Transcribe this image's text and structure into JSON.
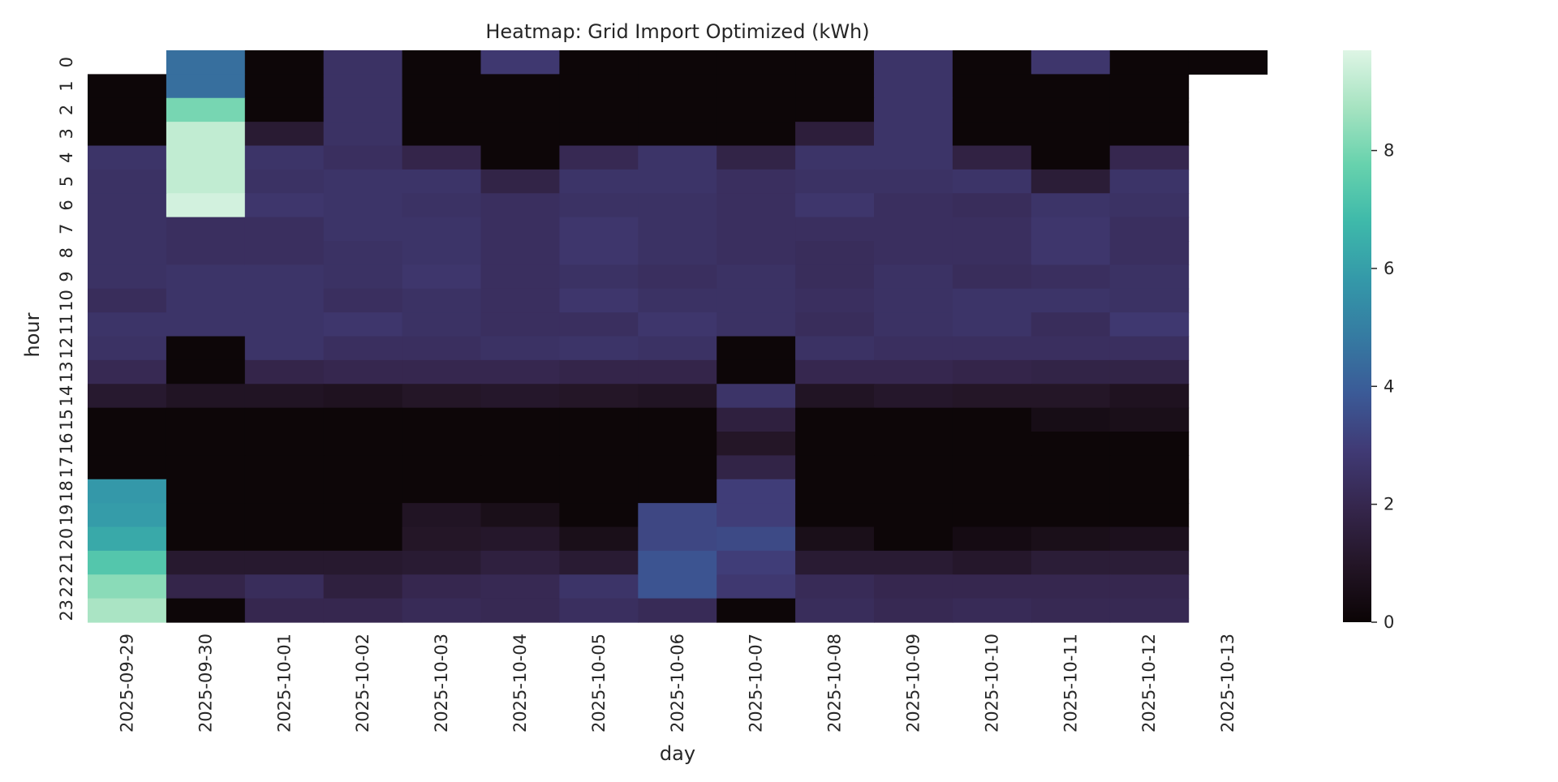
{
  "chart_data": {
    "type": "heatmap",
    "title": "Heatmap: Grid Import Optimized (kWh)",
    "xlabel": "day",
    "ylabel": "hour",
    "x": [
      "2025-09-29",
      "2025-09-30",
      "2025-10-01",
      "2025-10-02",
      "2025-10-03",
      "2025-10-04",
      "2025-10-05",
      "2025-10-06",
      "2025-10-07",
      "2025-10-08",
      "2025-10-09",
      "2025-10-10",
      "2025-10-11",
      "2025-10-12",
      "2025-10-13"
    ],
    "y": [
      "0",
      "1",
      "2",
      "3",
      "4",
      "5",
      "6",
      "7",
      "8",
      "9",
      "10",
      "11",
      "12",
      "13",
      "14",
      "15",
      "16",
      "17",
      "18",
      "19",
      "20",
      "21",
      "22",
      "23"
    ],
    "values": [
      [
        null,
        4.5,
        0.1,
        2.5,
        0.1,
        2.8,
        0.1,
        0.1,
        0.1,
        0.1,
        2.6,
        0.1,
        2.7,
        0.1,
        0.1
      ],
      [
        0.1,
        4.5,
        0.1,
        2.5,
        0.1,
        0.1,
        0.1,
        0.1,
        0.1,
        0.1,
        2.6,
        0.1,
        0.1,
        0.1,
        null
      ],
      [
        0.1,
        8.0,
        0.1,
        2.5,
        0.1,
        0.1,
        0.1,
        0.1,
        0.1,
        0.1,
        2.6,
        0.1,
        0.1,
        0.1,
        null
      ],
      [
        0.1,
        9.2,
        1.3,
        2.5,
        0.1,
        0.1,
        0.1,
        0.1,
        0.1,
        1.5,
        2.6,
        0.1,
        0.1,
        0.1,
        null
      ],
      [
        2.6,
        9.2,
        2.6,
        2.4,
        1.9,
        0.1,
        2.1,
        2.6,
        1.8,
        2.6,
        2.6,
        1.7,
        0.1,
        2.0,
        null
      ],
      [
        2.5,
        9.2,
        2.5,
        2.6,
        2.6,
        1.8,
        2.6,
        2.6,
        2.4,
        2.5,
        2.5,
        2.6,
        1.4,
        2.6,
        null
      ],
      [
        2.5,
        9.5,
        2.7,
        2.6,
        2.5,
        2.4,
        2.5,
        2.5,
        2.4,
        2.7,
        2.4,
        2.3,
        2.6,
        2.5,
        null
      ],
      [
        2.5,
        2.4,
        2.4,
        2.6,
        2.6,
        2.4,
        2.7,
        2.5,
        2.4,
        2.4,
        2.4,
        2.4,
        2.7,
        2.4,
        null
      ],
      [
        2.5,
        2.4,
        2.4,
        2.5,
        2.6,
        2.4,
        2.7,
        2.5,
        2.4,
        2.3,
        2.4,
        2.4,
        2.7,
        2.4,
        null
      ],
      [
        2.5,
        2.6,
        2.6,
        2.5,
        2.7,
        2.4,
        2.5,
        2.4,
        2.5,
        2.3,
        2.5,
        2.3,
        2.4,
        2.5,
        null
      ],
      [
        2.3,
        2.6,
        2.6,
        2.4,
        2.5,
        2.4,
        2.7,
        2.5,
        2.5,
        2.4,
        2.5,
        2.6,
        2.6,
        2.5,
        null
      ],
      [
        2.6,
        2.6,
        2.6,
        2.7,
        2.5,
        2.4,
        2.4,
        2.7,
        2.5,
        2.3,
        2.5,
        2.6,
        2.3,
        2.8,
        null
      ],
      [
        2.5,
        0.1,
        2.6,
        2.4,
        2.4,
        2.5,
        2.6,
        2.5,
        0.1,
        2.5,
        2.4,
        2.4,
        2.4,
        2.4,
        null
      ],
      [
        2.1,
        0.1,
        1.9,
        2.0,
        2.0,
        2.0,
        1.9,
        1.9,
        0.1,
        2.0,
        2.0,
        1.9,
        1.8,
        1.8,
        null
      ],
      [
        1.2,
        0.9,
        0.9,
        0.8,
        1.0,
        1.1,
        1.0,
        0.9,
        2.6,
        0.9,
        1.1,
        1.0,
        1.0,
        0.8,
        null
      ],
      [
        0.1,
        0.1,
        0.1,
        0.1,
        0.1,
        0.1,
        0.1,
        0.1,
        1.6,
        0.1,
        0.1,
        0.1,
        0.5,
        0.6,
        null
      ],
      [
        0.1,
        0.1,
        0.1,
        0.1,
        0.1,
        0.1,
        0.1,
        0.1,
        1.0,
        0.1,
        0.1,
        0.1,
        0.1,
        0.1,
        null
      ],
      [
        0.1,
        0.1,
        0.1,
        0.1,
        0.1,
        0.1,
        0.1,
        0.1,
        1.8,
        0.1,
        0.1,
        0.1,
        0.1,
        0.1,
        null
      ],
      [
        5.8,
        0.1,
        0.1,
        0.1,
        0.1,
        0.1,
        0.1,
        0.1,
        3.0,
        0.1,
        0.1,
        0.1,
        0.1,
        0.1,
        null
      ],
      [
        5.9,
        0.1,
        0.1,
        0.1,
        0.9,
        0.6,
        0.1,
        3.3,
        3.0,
        0.1,
        0.1,
        0.1,
        0.1,
        0.1,
        null
      ],
      [
        6.3,
        0.1,
        0.1,
        0.1,
        1.0,
        1.1,
        0.6,
        3.3,
        3.4,
        0.6,
        0.1,
        0.4,
        0.6,
        0.7,
        null
      ],
      [
        7.3,
        1.2,
        1.2,
        1.2,
        1.3,
        1.6,
        1.3,
        3.7,
        3.0,
        1.3,
        1.3,
        1.1,
        1.4,
        1.4,
        null
      ],
      [
        8.3,
        1.9,
        2.3,
        1.6,
        2.0,
        2.1,
        2.6,
        3.7,
        2.8,
        2.2,
        2.0,
        2.0,
        2.0,
        2.0,
        null
      ],
      [
        8.8,
        0.1,
        2.0,
        2.0,
        2.2,
        2.1,
        2.4,
        2.2,
        0.1,
        2.3,
        2.1,
        2.2,
        2.1,
        2.1,
        null
      ]
    ],
    "colorbar": {
      "colormap": "mako",
      "vmin": 0,
      "vmax": 9.7,
      "ticks": [
        "0",
        "2",
        "4",
        "6",
        "8"
      ]
    },
    "grid": false,
    "legend": "colorbar-right"
  }
}
